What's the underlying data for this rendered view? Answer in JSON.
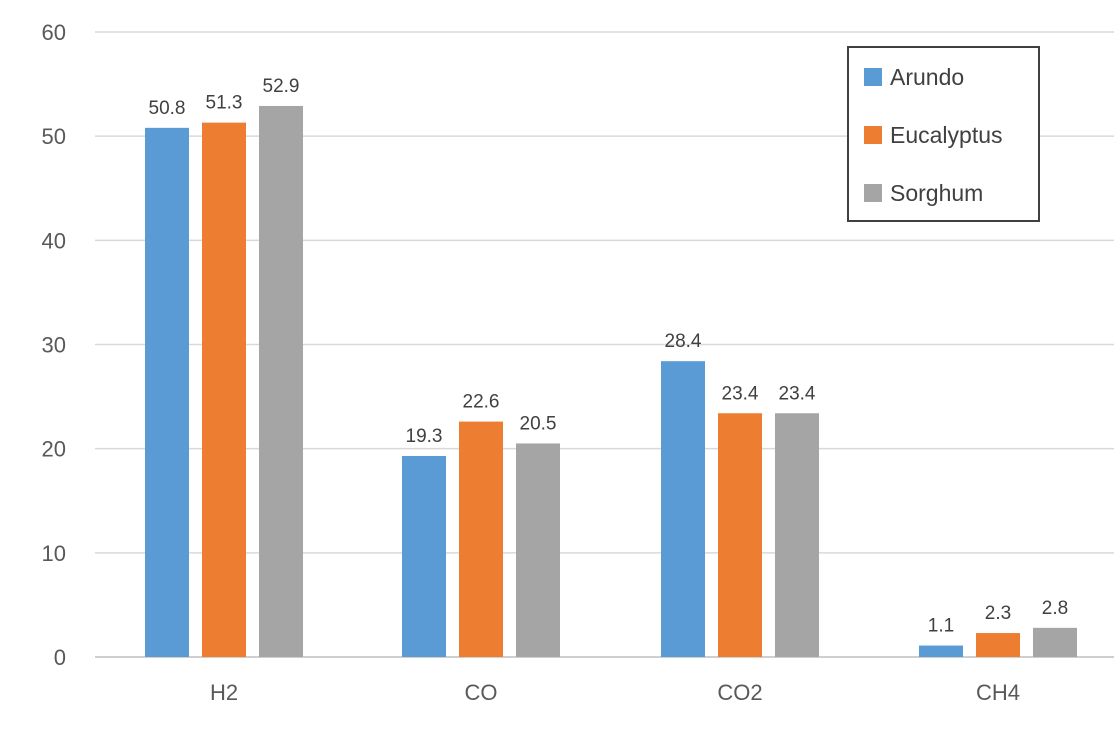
{
  "chart_data": {
    "type": "bar",
    "title": "",
    "xlabel": "",
    "ylabel": "",
    "ylim": [
      0,
      60
    ],
    "yticks": [
      0,
      10,
      20,
      30,
      40,
      50,
      60
    ],
    "grid": true,
    "legend_position": "top-right",
    "categories": [
      "H2",
      "CO",
      "CO2",
      "CH4"
    ],
    "series": [
      {
        "name": "Arundo",
        "color": "#5B9BD5",
        "values": [
          50.8,
          19.3,
          28.4,
          1.1
        ],
        "labels": [
          "50.8",
          "19.3",
          "28.4",
          "1.1"
        ]
      },
      {
        "name": "Eucalyptus",
        "color": "#ED7D31",
        "values": [
          51.3,
          22.6,
          23.4,
          2.3
        ],
        "labels": [
          "51.3",
          "22.6",
          "23.4",
          "2.3"
        ]
      },
      {
        "name": "Sorghum",
        "color": "#A5A5A5",
        "values": [
          52.9,
          20.5,
          23.4,
          2.8
        ],
        "labels": [
          "52.9",
          "20.5",
          "23.4",
          "2.8"
        ]
      }
    ]
  }
}
